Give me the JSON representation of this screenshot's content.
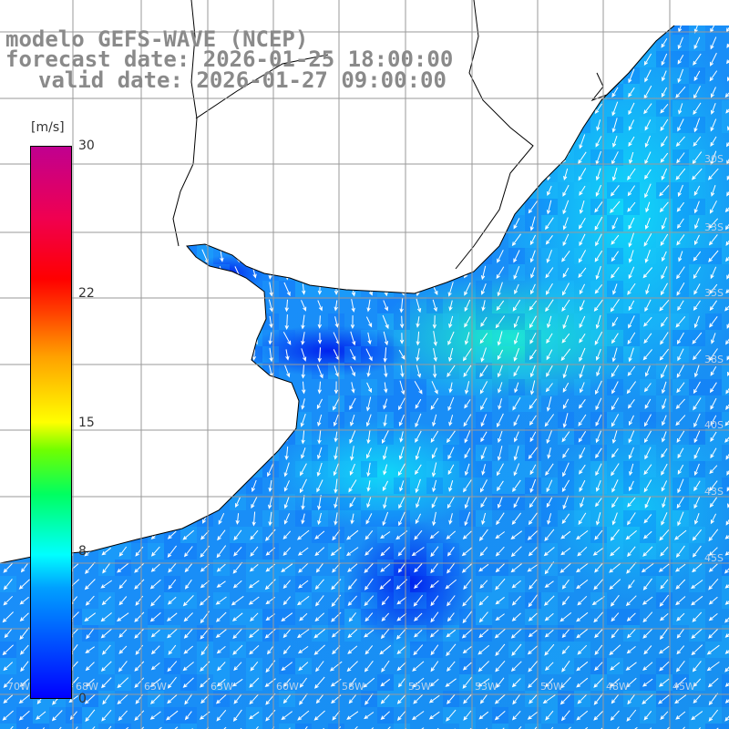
{
  "title": {
    "line1": "modelo GEFS-WAVE (NCEP)",
    "line2": "forecast date: 2026-01-25 18:00:00",
    "line3": "valid date: 2026-01-27 09:00:00"
  },
  "colorbar": {
    "unit": "[m/s]",
    "ticks": [
      "30",
      "22",
      "15",
      "8",
      "0"
    ],
    "tick_values": [
      30,
      22,
      15,
      8,
      0
    ],
    "range": [
      0,
      30
    ],
    "colors": [
      "#0000ff",
      "#00a0ff",
      "#00ffff",
      "#00ff60",
      "#70ff00",
      "#ffff00",
      "#ffa000",
      "#ff4000",
      "#ff0000",
      "#f00050",
      "#c00090"
    ]
  },
  "map": {
    "variable": "wind speed and direction",
    "land_color": "#ffffff",
    "coastline_color": "#000000",
    "grid_color": "#999999",
    "lat_labels": [
      "30S",
      "33S",
      "35S",
      "38S",
      "40S",
      "43S",
      "45S"
    ],
    "lon_labels": [
      "70W",
      "68W",
      "65W",
      "63W",
      "60W",
      "58W",
      "55W",
      "53W",
      "50W",
      "48W",
      "45W"
    ]
  }
}
